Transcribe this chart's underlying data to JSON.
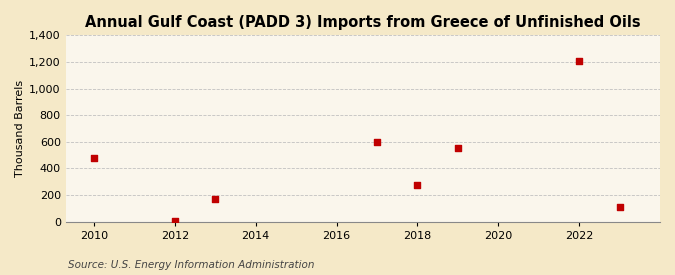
{
  "title": "Annual Gulf Coast (PADD 3) Imports from Greece of Unfinished Oils",
  "ylabel": "Thousand Barrels",
  "source": "Source: U.S. Energy Information Administration",
  "x_data": [
    2010,
    2012,
    2013,
    2017,
    2018,
    2019,
    2022,
    2023
  ],
  "y_data": [
    480,
    2,
    170,
    600,
    275,
    555,
    1205,
    110
  ],
  "marker_color": "#c00000",
  "marker_size": 22,
  "xlim": [
    2009.3,
    2024.0
  ],
  "ylim": [
    0,
    1400
  ],
  "yticks": [
    0,
    200,
    400,
    600,
    800,
    1000,
    1200,
    1400
  ],
  "xticks": [
    2010,
    2012,
    2014,
    2016,
    2018,
    2020,
    2022
  ],
  "background_color": "#f5e9c8",
  "plot_bg_color": "#faf6ec",
  "grid_color": "#bbbbbb",
  "title_fontsize": 10.5,
  "axis_label_fontsize": 8,
  "tick_fontsize": 8,
  "source_fontsize": 7.5
}
